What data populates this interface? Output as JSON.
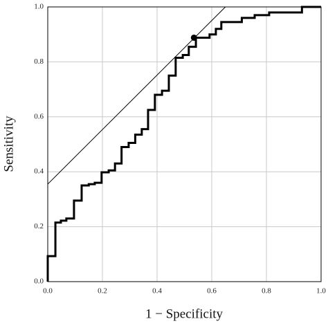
{
  "chart_data": {
    "type": "step",
    "xlabel": "1 − Specificity",
    "ylabel": "Sensitivity",
    "xlim": [
      0,
      1
    ],
    "ylim": [
      0,
      1
    ],
    "xticks": [
      {
        "value": 0,
        "label": "0.0"
      },
      0.2,
      0.4,
      0.6,
      0.8,
      {
        "value": 1,
        "label": "1.0"
      }
    ],
    "yticks": [
      {
        "value": 0,
        "label": "0.0"
      },
      0.2,
      0.4,
      0.6,
      0.8,
      {
        "value": 1,
        "label": "1.0"
      }
    ],
    "grid": true,
    "series": [
      {
        "color": "#000000",
        "x": [
          0,
          0,
          0.028,
          0.048,
          0.068,
          0.096,
          0.124,
          0.15,
          0.172,
          0.197,
          0.223,
          0.246,
          0.27,
          0.296,
          0.32,
          0.344,
          0.367,
          0.392,
          0.418,
          0.443,
          0.468,
          0.494,
          0.516,
          0.542,
          0.592,
          0.615,
          0.635,
          0.71,
          0.757,
          0.81,
          0.93,
          1.0
        ],
        "y": [
          0,
          0.093,
          0.215,
          0.222,
          0.23,
          0.295,
          0.35,
          0.355,
          0.36,
          0.398,
          0.405,
          0.43,
          0.49,
          0.505,
          0.535,
          0.555,
          0.625,
          0.68,
          0.695,
          0.75,
          0.815,
          0.825,
          0.855,
          0.888,
          0.9,
          0.92,
          0.945,
          0.96,
          0.97,
          0.98,
          1.0,
          1.0
        ]
      }
    ],
    "lines": [
      {
        "color": "#000000",
        "x": [
          0,
          0.65
        ],
        "y": [
          0.355,
          1.0
        ]
      }
    ],
    "points": [
      {
        "color": "#000000",
        "x": 0.535,
        "y": 0.888
      }
    ]
  }
}
